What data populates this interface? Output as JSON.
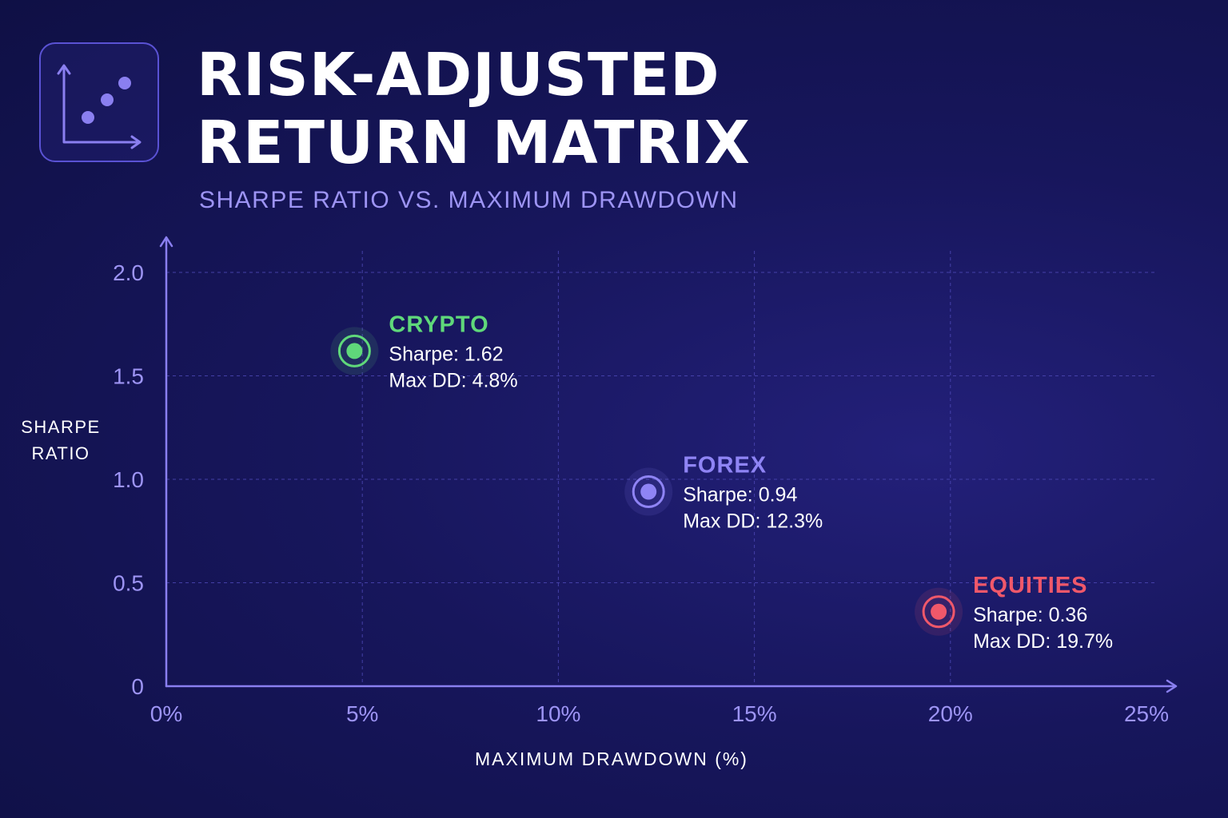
{
  "header": {
    "title": "RISK-ADJUSTED\nRETURN MATRIX",
    "subtitle": "SHARPE RATIO VS. MAXIMUM DRAWDOWN",
    "icon": "scatter-plot-icon"
  },
  "colors": {
    "background": "#17165c",
    "accent": "#8a7ff0",
    "crypto": "#5fd87a",
    "forex": "#8f84f5",
    "equities": "#f0586a"
  },
  "chart_data": {
    "type": "scatter",
    "title": "RISK-ADJUSTED RETURN MATRIX",
    "subtitle": "SHARPE RATIO VS. MAXIMUM DRAWDOWN",
    "xlabel": "MAXIMUM DRAWDOWN (%)",
    "ylabel": "SHARPE\nRATIO",
    "xlim": [
      0,
      25
    ],
    "ylim": [
      0,
      2.0
    ],
    "x_ticks": [
      {
        "value": 0,
        "label": "0%"
      },
      {
        "value": 5,
        "label": "5%"
      },
      {
        "value": 10,
        "label": "10%"
      },
      {
        "value": 15,
        "label": "15%"
      },
      {
        "value": 20,
        "label": "20%"
      },
      {
        "value": 25,
        "label": "25%"
      }
    ],
    "y_ticks": [
      {
        "value": 0,
        "label": "0"
      },
      {
        "value": 0.5,
        "label": "0.5"
      },
      {
        "value": 1.0,
        "label": "1.0"
      },
      {
        "value": 1.5,
        "label": "1.5"
      },
      {
        "value": 2.0,
        "label": "2.0"
      }
    ],
    "grid": true,
    "points": [
      {
        "name": "CRYPTO",
        "x": 4.8,
        "y": 1.62,
        "color": "#5fd87a",
        "sharpe_text": "Sharpe: 1.62",
        "dd_text": "Max DD: 4.8%"
      },
      {
        "name": "FOREX",
        "x": 12.3,
        "y": 0.94,
        "color": "#8f84f5",
        "sharpe_text": "Sharpe: 0.94",
        "dd_text": "Max DD: 12.3%"
      },
      {
        "name": "EQUITIES",
        "x": 19.7,
        "y": 0.36,
        "color": "#f0586a",
        "sharpe_text": "Sharpe: 0.36",
        "dd_text": "Max DD: 19.7%"
      }
    ]
  }
}
